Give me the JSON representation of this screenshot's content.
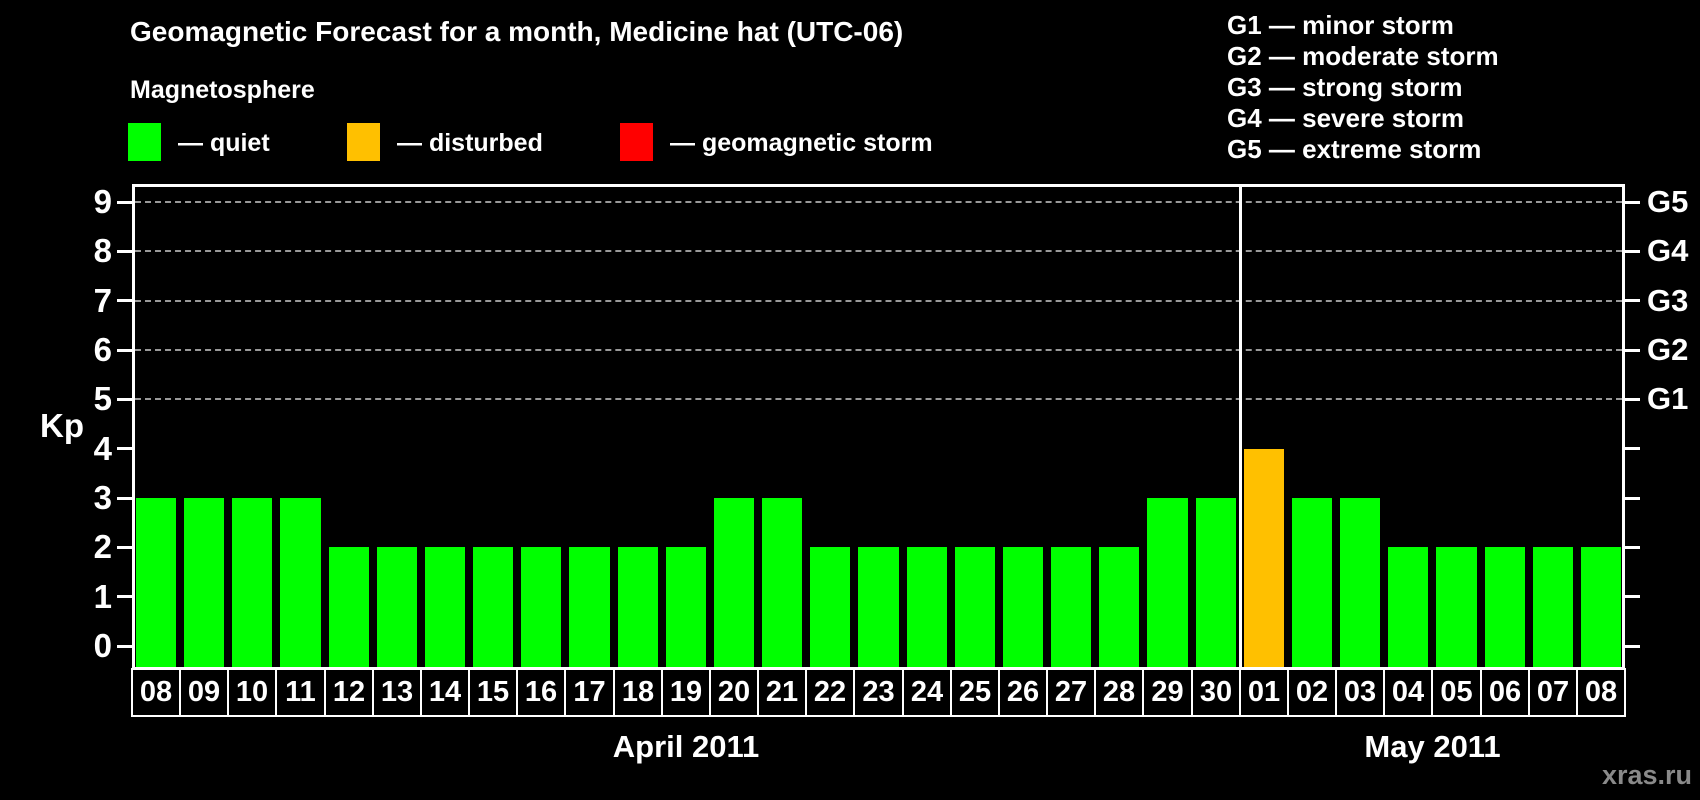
{
  "header": {
    "title": "Geomagnetic Forecast for a month, Medicine hat (UTC-06)",
    "subtitle": "Magnetosphere"
  },
  "legend": {
    "items": [
      {
        "state": "quiet",
        "label": "— quiet",
        "color": "#00ff00"
      },
      {
        "state": "disturbed",
        "label": "— disturbed",
        "color": "#ffc000"
      },
      {
        "state": "storm",
        "label": "— geomagnetic storm",
        "color": "#ff0000"
      }
    ]
  },
  "storm_scale_legend": {
    "items": [
      "G1 — minor storm",
      "G2 — moderate storm",
      "G3 — strong storm",
      "G4 — severe storm",
      "G5 — extreme storm"
    ]
  },
  "watermark": "xras.ru",
  "chart_data": {
    "type": "bar",
    "title": "Geomagnetic Forecast for a month, Medicine hat (UTC-06)",
    "ylabel": "Kp",
    "xlabel": "",
    "ylim": [
      0,
      9
    ],
    "y_ticks": [
      0,
      1,
      2,
      3,
      4,
      5,
      6,
      7,
      8,
      9
    ],
    "grid_kp_levels": [
      5,
      6,
      7,
      8,
      9
    ],
    "grid_style": "dashed",
    "legend_position": "top",
    "right_axis_ticks": [
      {
        "label": "G1",
        "kp": 5
      },
      {
        "label": "G2",
        "kp": 6
      },
      {
        "label": "G3",
        "kp": 7
      },
      {
        "label": "G4",
        "kp": 8
      },
      {
        "label": "G5",
        "kp": 9
      }
    ],
    "state_colors": {
      "quiet": "#00ff00",
      "disturbed": "#ffc000",
      "storm": "#ff0000"
    },
    "months": [
      {
        "label": "April 2011",
        "days": 23
      },
      {
        "label": "May 2011",
        "days": 8
      }
    ],
    "month_separator_after_index": 22,
    "categories": [
      "08",
      "09",
      "10",
      "11",
      "12",
      "13",
      "14",
      "15",
      "16",
      "17",
      "18",
      "19",
      "20",
      "21",
      "22",
      "23",
      "24",
      "25",
      "26",
      "27",
      "28",
      "29",
      "30",
      "01",
      "02",
      "03",
      "04",
      "05",
      "06",
      "07",
      "08"
    ],
    "bars": [
      {
        "day": "08",
        "month": "April 2011",
        "kp": 3,
        "state": "quiet"
      },
      {
        "day": "09",
        "month": "April 2011",
        "kp": 3,
        "state": "quiet"
      },
      {
        "day": "10",
        "month": "April 2011",
        "kp": 3,
        "state": "quiet"
      },
      {
        "day": "11",
        "month": "April 2011",
        "kp": 3,
        "state": "quiet"
      },
      {
        "day": "12",
        "month": "April 2011",
        "kp": 2,
        "state": "quiet"
      },
      {
        "day": "13",
        "month": "April 2011",
        "kp": 2,
        "state": "quiet"
      },
      {
        "day": "14",
        "month": "April 2011",
        "kp": 2,
        "state": "quiet"
      },
      {
        "day": "15",
        "month": "April 2011",
        "kp": 2,
        "state": "quiet"
      },
      {
        "day": "16",
        "month": "April 2011",
        "kp": 2,
        "state": "quiet"
      },
      {
        "day": "17",
        "month": "April 2011",
        "kp": 2,
        "state": "quiet"
      },
      {
        "day": "18",
        "month": "April 2011",
        "kp": 2,
        "state": "quiet"
      },
      {
        "day": "19",
        "month": "April 2011",
        "kp": 2,
        "state": "quiet"
      },
      {
        "day": "20",
        "month": "April 2011",
        "kp": 3,
        "state": "quiet"
      },
      {
        "day": "21",
        "month": "April 2011",
        "kp": 3,
        "state": "quiet"
      },
      {
        "day": "22",
        "month": "April 2011",
        "kp": 2,
        "state": "quiet"
      },
      {
        "day": "23",
        "month": "April 2011",
        "kp": 2,
        "state": "quiet"
      },
      {
        "day": "24",
        "month": "April 2011",
        "kp": 2,
        "state": "quiet"
      },
      {
        "day": "25",
        "month": "April 2011",
        "kp": 2,
        "state": "quiet"
      },
      {
        "day": "26",
        "month": "April 2011",
        "kp": 2,
        "state": "quiet"
      },
      {
        "day": "27",
        "month": "April 2011",
        "kp": 2,
        "state": "quiet"
      },
      {
        "day": "28",
        "month": "April 2011",
        "kp": 2,
        "state": "quiet"
      },
      {
        "day": "29",
        "month": "April 2011",
        "kp": 3,
        "state": "quiet"
      },
      {
        "day": "30",
        "month": "April 2011",
        "kp": 3,
        "state": "quiet"
      },
      {
        "day": "01",
        "month": "May 2011",
        "kp": 4,
        "state": "disturbed"
      },
      {
        "day": "02",
        "month": "May 2011",
        "kp": 3,
        "state": "quiet"
      },
      {
        "day": "03",
        "month": "May 2011",
        "kp": 3,
        "state": "quiet"
      },
      {
        "day": "04",
        "month": "May 2011",
        "kp": 2,
        "state": "quiet"
      },
      {
        "day": "05",
        "month": "May 2011",
        "kp": 2,
        "state": "quiet"
      },
      {
        "day": "06",
        "month": "May 2011",
        "kp": 2,
        "state": "quiet"
      },
      {
        "day": "07",
        "month": "May 2011",
        "kp": 2,
        "state": "quiet"
      },
      {
        "day": "08",
        "month": "May 2011",
        "kp": 2,
        "state": "quiet"
      }
    ]
  }
}
